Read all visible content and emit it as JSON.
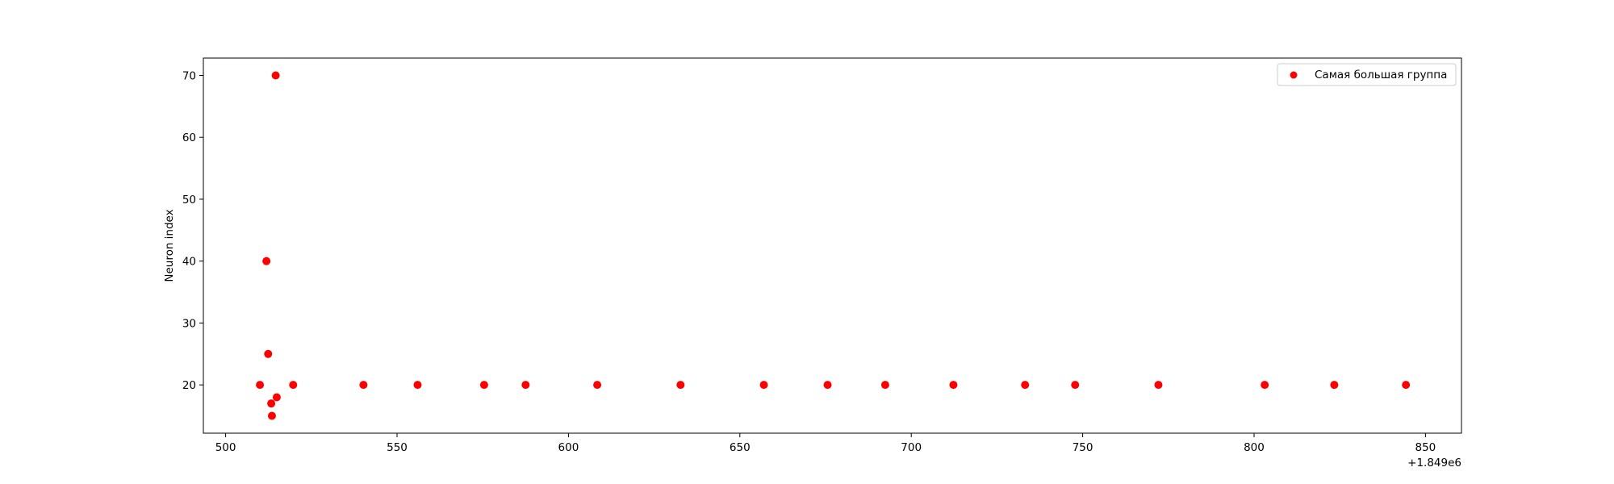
{
  "chart_data": {
    "type": "scatter",
    "title": "",
    "xlabel": "",
    "ylabel": "Neuron index",
    "x_offset_label": "+1.849e6",
    "xlim": [
      493.5,
      860.5
    ],
    "ylim": [
      12.2,
      72.8
    ],
    "xticks": [
      500,
      550,
      600,
      650,
      700,
      750,
      800,
      850
    ],
    "yticks": [
      20,
      30,
      40,
      50,
      60,
      70
    ],
    "grid": false,
    "legend_position": "top-right",
    "series": [
      {
        "name": "Самая большая группа",
        "color": "#ff0000",
        "points": [
          {
            "x": 510.0,
            "y": 20
          },
          {
            "x": 511.9,
            "y": 40
          },
          {
            "x": 512.4,
            "y": 25
          },
          {
            "x": 513.3,
            "y": 17
          },
          {
            "x": 513.5,
            "y": 15
          },
          {
            "x": 514.6,
            "y": 70
          },
          {
            "x": 514.9,
            "y": 18
          },
          {
            "x": 519.7,
            "y": 20
          },
          {
            "x": 540.2,
            "y": 20
          },
          {
            "x": 556.0,
            "y": 20
          },
          {
            "x": 575.4,
            "y": 20
          },
          {
            "x": 587.5,
            "y": 20
          },
          {
            "x": 608.4,
            "y": 20
          },
          {
            "x": 632.7,
            "y": 20
          },
          {
            "x": 657.0,
            "y": 20
          },
          {
            "x": 675.6,
            "y": 20
          },
          {
            "x": 692.4,
            "y": 20
          },
          {
            "x": 712.3,
            "y": 20
          },
          {
            "x": 733.2,
            "y": 20
          },
          {
            "x": 747.8,
            "y": 20
          },
          {
            "x": 772.1,
            "y": 20
          },
          {
            "x": 803.1,
            "y": 20
          },
          {
            "x": 823.4,
            "y": 20
          },
          {
            "x": 844.3,
            "y": 20
          }
        ]
      }
    ]
  }
}
